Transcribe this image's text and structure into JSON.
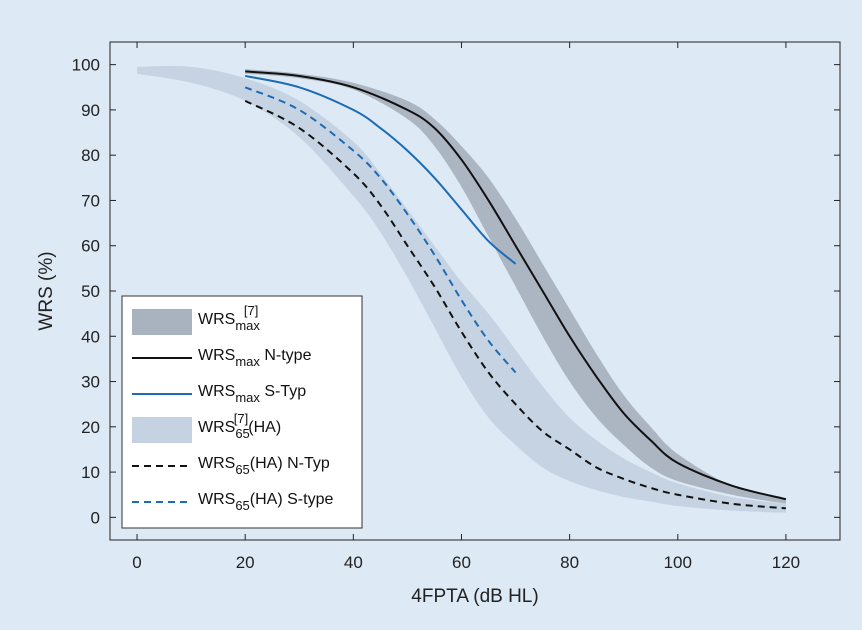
{
  "chart_data": {
    "type": "line",
    "xlabel": "4FPTA (dB HL)",
    "ylabel": "WRS (%)",
    "xlim": [
      -5,
      130
    ],
    "ylim": [
      -5,
      105
    ],
    "xticks": [
      0,
      20,
      40,
      60,
      80,
      100,
      120
    ],
    "yticks": [
      0,
      10,
      20,
      30,
      40,
      50,
      60,
      70,
      80,
      90,
      100
    ],
    "grid": false,
    "legend_position": "bottom-left",
    "colors": {
      "background": "#dde9f4",
      "plot_area": "#dde9f4",
      "band_max": "#a9b3bf",
      "band_ha": "#c4d2e1",
      "black": "#111111",
      "blue": "#1b6bb5"
    },
    "series": [
      {
        "name": "WRSmax[7]",
        "legend_main": "WRS",
        "legend_sub": "max",
        "legend_sup": "[7]",
        "legend_suffix": "",
        "kind": "band",
        "color": "#a9b3bf",
        "x": [
          20,
          30,
          40,
          50,
          55,
          60,
          65,
          70,
          75,
          80,
          85,
          90,
          95,
          100,
          110,
          120
        ],
        "upper": [
          99,
          98,
          96,
          92,
          88,
          82,
          75,
          66,
          56,
          46,
          36,
          27,
          20,
          14,
          7,
          4
        ],
        "lower": [
          98,
          97,
          94.5,
          88,
          82,
          73,
          62,
          51,
          40,
          30,
          22,
          16,
          11,
          8,
          5,
          3
        ]
      },
      {
        "name": "WRSmax N-type",
        "legend_main": "WRS",
        "legend_sub": "max",
        "legend_sup": "",
        "legend_suffix": " N-type",
        "kind": "line",
        "color": "#111111",
        "dash": false,
        "x": [
          20,
          30,
          40,
          50,
          55,
          60,
          65,
          70,
          75,
          80,
          85,
          90,
          95,
          100,
          110,
          120
        ],
        "y": [
          98.5,
          97.5,
          95,
          90,
          86,
          79,
          70,
          60,
          50,
          40,
          31,
          23,
          17,
          12,
          7,
          4
        ]
      },
      {
        "name": "WRSmax S-Typ",
        "legend_main": "WRS",
        "legend_sub": "max",
        "legend_sup": "",
        "legend_suffix": " S-Typ",
        "kind": "line",
        "color": "#1b6bb5",
        "dash": false,
        "x": [
          20,
          30,
          40,
          45,
          50,
          55,
          60,
          65,
          70
        ],
        "y": [
          97.5,
          95,
          90,
          86,
          81,
          75,
          68,
          61,
          56
        ]
      },
      {
        "name": "WRS65(HA)[7]",
        "legend_main": "WRS",
        "legend_sub": "65",
        "legend_sup": "[7]",
        "legend_suffix": "(HA)",
        "kind": "band",
        "color": "#c4d2e1",
        "x": [
          0,
          10,
          20,
          30,
          40,
          45,
          50,
          55,
          60,
          65,
          70,
          75,
          80,
          85,
          90,
          95,
          100,
          110,
          120
        ],
        "upper": [
          99.5,
          99.5,
          97,
          92,
          83,
          76,
          68,
          60,
          52,
          45,
          37,
          29,
          22,
          17,
          13,
          10,
          7.5,
          4.5,
          3
        ],
        "lower": [
          98,
          96,
          92,
          84,
          71,
          63,
          53,
          42,
          31,
          22,
          16,
          11,
          8,
          6,
          4.5,
          3.5,
          2.5,
          1.5,
          1
        ]
      },
      {
        "name": "WRS65(HA) N-Typ",
        "legend_main": "WRS",
        "legend_sub": "65",
        "legend_sup": "",
        "legend_suffix": "(HA) N-Typ",
        "kind": "line",
        "color": "#111111",
        "dash": true,
        "x": [
          20,
          30,
          40,
          45,
          50,
          55,
          60,
          65,
          70,
          75,
          80,
          85,
          90,
          95,
          100,
          110,
          120
        ],
        "y": [
          92,
          86,
          76,
          69,
          60,
          51,
          41,
          32,
          25,
          19,
          15,
          11,
          8.5,
          6.5,
          5,
          3,
          2
        ]
      },
      {
        "name": "WRS65(HA) S-type",
        "legend_main": "WRS",
        "legend_sub": "65",
        "legend_sup": "",
        "legend_suffix": "(HA) S-type",
        "kind": "line",
        "color": "#1b6bb5",
        "dash": true,
        "x": [
          20,
          30,
          40,
          45,
          50,
          55,
          60,
          65,
          70
        ],
        "y": [
          95,
          90,
          81,
          75,
          67,
          58,
          48,
          39,
          32
        ]
      }
    ]
  }
}
